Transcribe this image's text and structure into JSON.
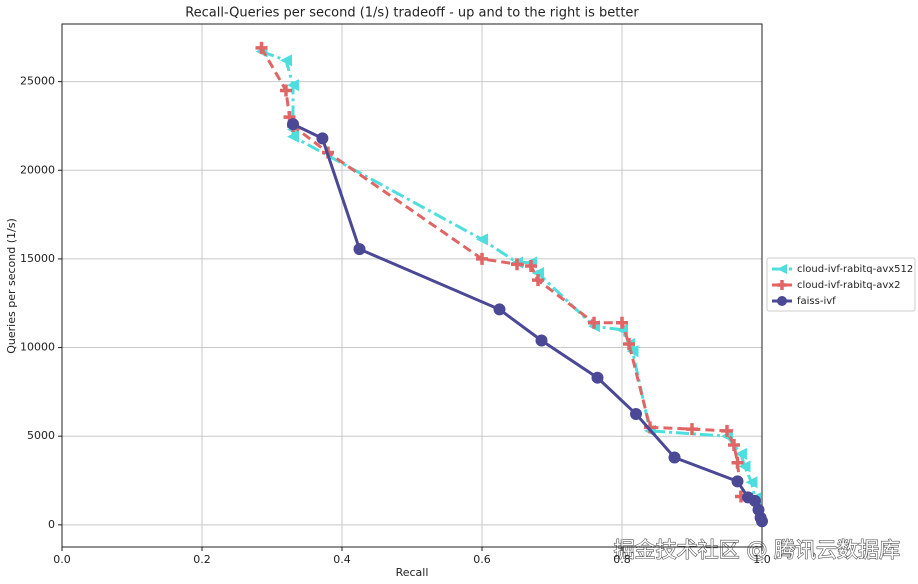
{
  "chart_data": {
    "type": "line",
    "title": "Recall-Queries per second (1/s) tradeoff - up and to the right is better",
    "x_label": "Recall",
    "y_label": "Queries per second (1/s)",
    "xlim": [
      0,
      1
    ],
    "ylim": [
      -1250,
      28250
    ],
    "xticks": [
      {
        "value": 0,
        "label": "0.0"
      },
      0.2,
      0.4,
      0.6,
      0.8,
      {
        "value": 1,
        "label": "1.0"
      }
    ],
    "yticks": [
      0,
      5000,
      10000,
      15000,
      20000,
      25000
    ],
    "grid": true,
    "legend": "outside right",
    "watermark": "掘金技术社区 @ 腾讯云数据库",
    "series": [
      {
        "name": "cloud-ivf-rabitq-avx512",
        "color": "#4fdede",
        "marker": "triangle-left",
        "dash": "dashdot",
        "x": [
          0.285,
          0.32,
          0.33,
          0.33,
          0.33,
          0.6,
          0.65,
          0.67,
          0.68,
          0.76,
          0.8,
          0.81,
          0.815,
          0.84,
          0.95,
          0.97,
          0.975,
          0.985,
          0.99
        ],
        "values": [
          26700,
          26200,
          24800,
          22300,
          21900,
          16100,
          14800,
          14800,
          14200,
          11200,
          11000,
          10200,
          9800,
          5300,
          5000,
          4000,
          3300,
          2400,
          1500
        ]
      },
      {
        "name": "cloud-ivf-rabitq-avx2",
        "color": "#e06666",
        "marker": "plus",
        "dash": "dashed",
        "x": [
          0.285,
          0.32,
          0.325,
          0.33,
          0.38,
          0.6,
          0.65,
          0.67,
          0.68,
          0.76,
          0.8,
          0.81,
          0.84,
          0.9,
          0.95,
          0.96,
          0.965,
          0.97
        ],
        "values": [
          26900,
          24500,
          23000,
          22500,
          21000,
          15000,
          14700,
          14600,
          13800,
          11400,
          11400,
          10200,
          5500,
          5400,
          5300,
          4500,
          3500,
          1600
        ]
      },
      {
        "name": "faiss-ivf",
        "color": "#4b4896",
        "marker": "circle",
        "dash": "solid",
        "x": [
          0.33,
          0.372,
          0.425,
          0.625,
          0.685,
          0.765,
          0.82,
          0.875,
          0.965,
          0.98,
          0.99,
          0.995,
          0.998,
          1.0
        ],
        "values": [
          22600,
          21800,
          15550,
          12150,
          10400,
          8300,
          6250,
          3800,
          2450,
          1550,
          1350,
          850,
          400,
          200
        ]
      }
    ]
  }
}
